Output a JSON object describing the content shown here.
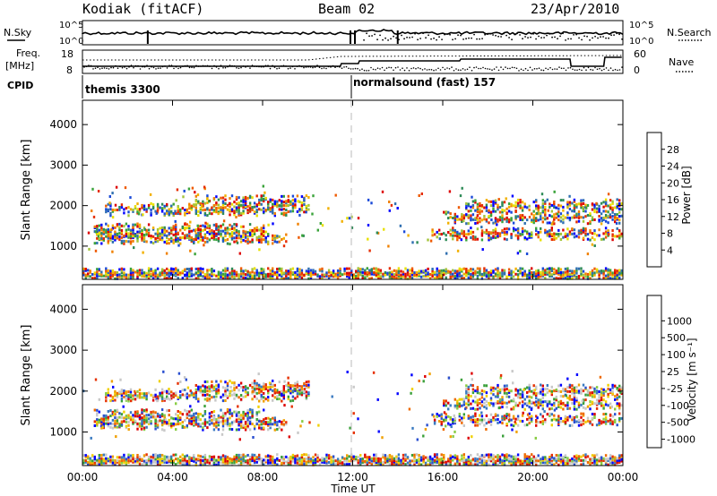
{
  "header": {
    "station": "Kodiak (fitACF)",
    "beam": "Beam 02",
    "date": "23/Apr/2010"
  },
  "top_panels": {
    "nsky_label": "N.Sky",
    "nsky_ticks": [
      "10^5",
      "10^0"
    ],
    "nsearch_label": "N.Search",
    "nsearch_ticks": [
      "10^5",
      "10^0"
    ],
    "freq_label_1": "Freq.",
    "freq_label_2": "[MHz]",
    "freq_ticks": [
      "18",
      "8"
    ],
    "nave_label": "Nave",
    "nave_ticks": [
      "60",
      "0"
    ],
    "cpid_label": "CPID",
    "cpid_entries": [
      {
        "name": "themis 3300",
        "start_hour": 0,
        "end_hour": 12
      },
      {
        "name": "normalsound (fast) 157",
        "start_hour": 12,
        "end_hour": 24
      }
    ]
  },
  "chart_data": [
    {
      "type": "heatmap",
      "panel": "power",
      "ylabel": "Slant Range [km]",
      "xlabel": "",
      "y_ticks": [
        1000,
        2000,
        3000,
        4000
      ],
      "ylim": [
        180,
        4600
      ],
      "xlim": [
        0,
        24
      ],
      "colorbar": {
        "label": "Power [dB]",
        "ticks": [
          4,
          8,
          12,
          16,
          20,
          24,
          28
        ],
        "range": [
          0,
          32
        ],
        "colors": [
          "#0000ff",
          "#1a4ad8",
          "#2f6fb0",
          "#2e8b57",
          "#3aa33a",
          "#a4c43a",
          "#e8e000",
          "#f2b000",
          "#f08000",
          "#ee5a00",
          "#e62d00",
          "#dd0000"
        ]
      },
      "echo_bands_km": [
        {
          "range_km": 300,
          "start_hour": 0,
          "end_hour": 24
        },
        {
          "range_km": 1200,
          "start_hour": 0.5,
          "end_hour": 9
        },
        {
          "range_km": 1400,
          "start_hour": 0.5,
          "end_hour": 8
        },
        {
          "range_km": 1900,
          "start_hour": 1,
          "end_hour": 10
        },
        {
          "range_km": 2100,
          "start_hour": 5,
          "end_hour": 10
        },
        {
          "range_km": 1300,
          "start_hour": 15.5,
          "end_hour": 24
        },
        {
          "range_km": 1700,
          "start_hour": 16,
          "end_hour": 24
        },
        {
          "range_km": 2000,
          "start_hour": 17,
          "end_hour": 24
        }
      ]
    },
    {
      "type": "heatmap",
      "panel": "velocity",
      "ylabel": "Slant Range [km]",
      "xlabel": "Time UT",
      "x_ticks": [
        "00:00",
        "04:00",
        "08:00",
        "12:00",
        "16:00",
        "20:00",
        "00:00"
      ],
      "y_ticks": [
        1000,
        2000,
        3000,
        4000
      ],
      "ylim": [
        180,
        4600
      ],
      "xlim": [
        0,
        24
      ],
      "colorbar": {
        "label": "Velocity [m s⁻¹]",
        "ticks": [
          1000,
          500,
          100,
          25,
          -25,
          -100,
          -500,
          -1000
        ],
        "colors": [
          "#0000ff",
          "#2a4fd0",
          "#3a7ac0",
          "#3aa03a",
          "#88cc44",
          "#c8c8c8",
          "#c8c8c8",
          "#f0d000",
          "#f0a000",
          "#ee6a00",
          "#e63000",
          "#dd0000"
        ]
      },
      "echo_bands_km": [
        {
          "range_km": 300,
          "start_hour": 0,
          "end_hour": 24
        },
        {
          "range_km": 1200,
          "start_hour": 0.5,
          "end_hour": 9
        },
        {
          "range_km": 1400,
          "start_hour": 0.5,
          "end_hour": 8
        },
        {
          "range_km": 1900,
          "start_hour": 1,
          "end_hour": 10
        },
        {
          "range_km": 2100,
          "start_hour": 5,
          "end_hour": 10
        },
        {
          "range_km": 1300,
          "start_hour": 15.5,
          "end_hour": 24
        },
        {
          "range_km": 1700,
          "start_hour": 16,
          "end_hour": 24
        },
        {
          "range_km": 2000,
          "start_hour": 17,
          "end_hour": 24
        }
      ]
    }
  ]
}
